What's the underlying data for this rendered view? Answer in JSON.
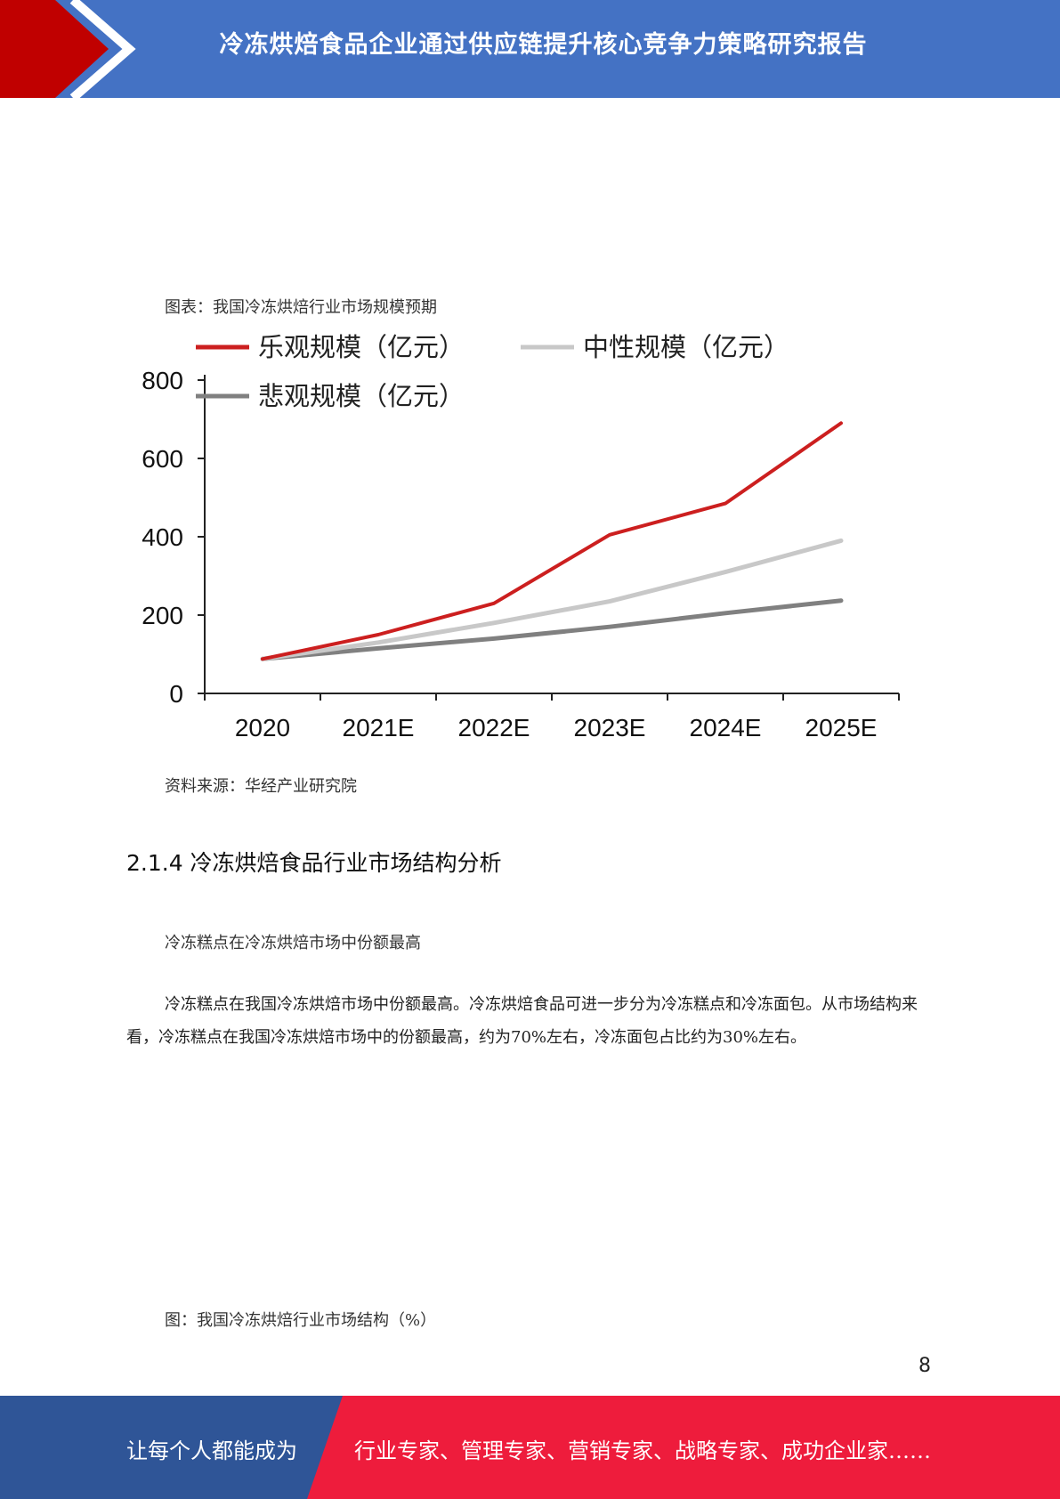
{
  "header": {
    "title": "冷冻烘焙食品企业通过供应链提升核心竞争力策略研究报告",
    "colors": {
      "bar": "#4472C4",
      "accent": "#C00000"
    }
  },
  "figure1": {
    "caption": "图表：我国冷冻烘焙行业市场规模预期",
    "source": "资料来源：华经产业研究院"
  },
  "chart_data": {
    "type": "line",
    "title": "",
    "xlabel": "",
    "ylabel": "",
    "categories": [
      "2020",
      "2021E",
      "2022E",
      "2023E",
      "2024E",
      "2025E"
    ],
    "ylim": [
      0,
      800
    ],
    "yticks": [
      "0",
      "200",
      "400",
      "600",
      "800"
    ],
    "grid": false,
    "legend_position": "top",
    "series": [
      {
        "name": "乐观规模（亿元）",
        "color": "#CC1F1F",
        "values": [
          88,
          150,
          230,
          405,
          485,
          690
        ]
      },
      {
        "name": "中性规模（亿元）",
        "color": "#C8C8C8",
        "values": [
          88,
          130,
          180,
          235,
          310,
          390
        ]
      },
      {
        "name": "悲观规模（亿元）",
        "color": "#808080",
        "values": [
          88,
          115,
          140,
          170,
          205,
          237
        ]
      }
    ]
  },
  "section": {
    "heading": "2.1.4 冷冻烘焙食品行业市场结构分析",
    "subheading": "冷冻糕点在冷冻烘焙市场中份额最高",
    "paragraph": "冷冻糕点在我国冷冻烘焙市场中份额最高。冷冻烘焙食品可进一步分为冷冻糕点和冷冻面包。从市场结构来看，冷冻糕点在我国冷冻烘焙市场中的份额最高，约为70%左右，冷冻面包占比约为30%左右。"
  },
  "figure2": {
    "caption": "图：我国冷冻烘焙行业市场结构（%）"
  },
  "page_number": "8",
  "footer": {
    "left_text": "让每个人都能成为",
    "right_text": "行业专家、管理专家、营销专家、战略专家、成功企业家……",
    "colors": {
      "left": "#2F5597",
      "right": "#EE1C3C"
    }
  }
}
